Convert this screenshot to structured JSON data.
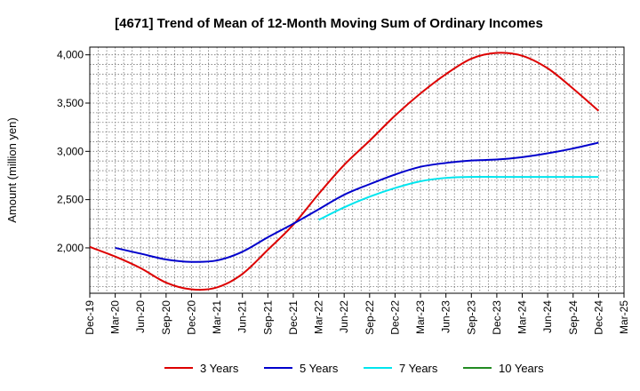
{
  "chart_data": {
    "type": "line",
    "title": "[4671]  Trend of Mean of 12-Month Moving Sum of Ordinary Incomes",
    "xlabel": "",
    "ylabel": "Amount (million yen)",
    "ylim": [
      1530,
      4080
    ],
    "yticks": [
      2000,
      2500,
      3000,
      3500,
      4000
    ],
    "ytick_labels": [
      "2,000",
      "2,500",
      "3,000",
      "3,500",
      "4,000"
    ],
    "categories": [
      "Dec-19",
      "Mar-20",
      "Jun-20",
      "Sep-20",
      "Dec-20",
      "Mar-21",
      "Jun-21",
      "Sep-21",
      "Dec-21",
      "Mar-22",
      "Jun-22",
      "Sep-22",
      "Dec-22",
      "Mar-23",
      "Jun-23",
      "Sep-23",
      "Dec-23",
      "Mar-24",
      "Jun-24",
      "Sep-24",
      "Dec-24",
      "Mar-25"
    ],
    "grid": true,
    "legend_position": "bottom",
    "series": [
      {
        "name": "3 Years",
        "color": "#dd0000",
        "values": [
          2010,
          1910,
          1790,
          1640,
          1570,
          1590,
          1730,
          1980,
          2240,
          2560,
          2860,
          3110,
          3370,
          3600,
          3800,
          3960,
          4020,
          3990,
          3860,
          3650,
          3420,
          null
        ]
      },
      {
        "name": "5 Years",
        "color": "#0000cc",
        "values": [
          null,
          2000,
          1940,
          1880,
          1855,
          1870,
          1960,
          2110,
          2250,
          2400,
          2550,
          2660,
          2760,
          2840,
          2880,
          2905,
          2915,
          2940,
          2980,
          3030,
          3090,
          null
        ]
      },
      {
        "name": "7 Years",
        "color": "#00e5ee",
        "values": [
          null,
          null,
          null,
          null,
          null,
          null,
          null,
          null,
          null,
          2290,
          2420,
          2530,
          2620,
          2690,
          2725,
          2735,
          2735,
          2735,
          2735,
          2735,
          2735,
          null
        ]
      },
      {
        "name": "10 Years",
        "color": "#228b22",
        "values": [
          null,
          null,
          null,
          null,
          null,
          null,
          null,
          null,
          null,
          null,
          null,
          null,
          null,
          null,
          null,
          null,
          null,
          null,
          null,
          null,
          null,
          null
        ]
      }
    ]
  }
}
